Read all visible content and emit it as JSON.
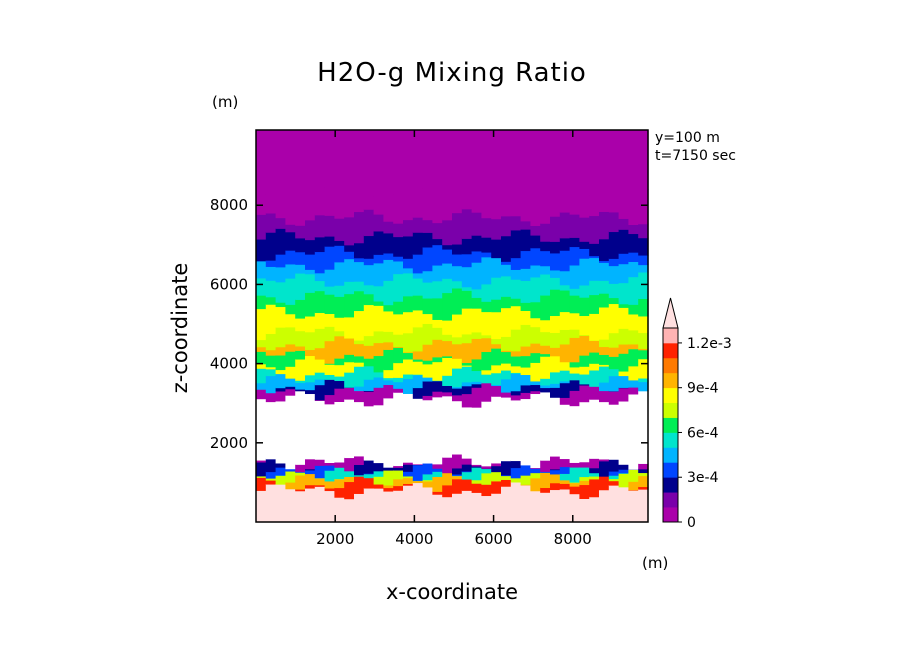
{
  "chart_data": {
    "type": "heatmap",
    "title": "H2O-g Mixing Ratio",
    "xlabel": "x-coordinate",
    "ylabel": "z-coordinate",
    "x_unit": "(m)",
    "y_unit": "(m)",
    "annotations": [
      "y=100 m",
      "t=7150 sec"
    ],
    "xlim": [
      0,
      9900
    ],
    "ylim": [
      0,
      9900
    ],
    "x_ticks": [
      2000,
      4000,
      6000,
      8000
    ],
    "y_ticks": [
      2000,
      4000,
      6000,
      8000
    ],
    "x_tick_labels": [
      "2000",
      "4000",
      "6000",
      "8000"
    ],
    "y_tick_labels": [
      "2000",
      "4000",
      "6000",
      "8000"
    ],
    "grid": false,
    "colorbar": {
      "levels": [
        0,
        0.0001,
        0.0002,
        0.0003,
        0.0004,
        0.0005,
        0.0006,
        0.0007,
        0.0008,
        0.0009,
        0.001,
        0.0011,
        0.0012
      ],
      "colors": [
        "#aa00aa",
        "#7a00aa",
        "#00008c",
        "#0046ff",
        "#00b4ff",
        "#00e5cc",
        "#00ee55",
        "#ccff00",
        "#ffff00",
        "#ffb400",
        "#ff7a00",
        "#ff2200",
        "#ffb3b3"
      ],
      "extend_color": "#ffe0e0",
      "labels": [
        {
          "value": 0.0012,
          "text": "1.2e-3"
        },
        {
          "value": 0.0009,
          "text": "9e-4"
        },
        {
          "value": 0.0006,
          "text": "6e-4"
        },
        {
          "value": 0.0003,
          "text": "3e-4"
        },
        {
          "value": 0,
          "text": "0"
        }
      ]
    },
    "z_profile": [
      {
        "z_top": 800,
        "value": 0.0013
      },
      {
        "z_top": 950,
        "value": 0.00115
      },
      {
        "z_top": 1050,
        "value": 0.00095
      },
      {
        "z_top": 1120,
        "value": 0.00075
      },
      {
        "z_top": 1200,
        "value": 0.00055
      },
      {
        "z_top": 1280,
        "value": 0.00035
      },
      {
        "z_top": 1380,
        "value": 0.00025
      },
      {
        "z_top": 1500,
        "value": 5e-05
      },
      {
        "z_top": 3100,
        "value": null
      },
      {
        "z_top": 3300,
        "value": 5e-05
      },
      {
        "z_top": 3400,
        "value": 0.00025
      },
      {
        "z_top": 3550,
        "value": 0.00045
      },
      {
        "z_top": 3750,
        "value": 0.00055
      },
      {
        "z_top": 4000,
        "value": 0.00085
      },
      {
        "z_top": 4200,
        "value": 0.00065
      },
      {
        "z_top": 4500,
        "value": 0.00095
      },
      {
        "z_top": 4800,
        "value": 0.00075
      },
      {
        "z_top": 5300,
        "value": 0.00085
      },
      {
        "z_top": 5700,
        "value": 0.00065
      },
      {
        "z_top": 6100,
        "value": 0.00055
      },
      {
        "z_top": 6500,
        "value": 0.00045
      },
      {
        "z_top": 6800,
        "value": 0.00035
      },
      {
        "z_top": 7200,
        "value": 0.00025
      },
      {
        "z_top": 7700,
        "value": 0.00015
      },
      {
        "z_top": 8300,
        "value": 5e-05
      },
      {
        "z_top": 9900,
        "value": 0
      }
    ],
    "x_cells": 40,
    "z_shift_amplitude": 220
  }
}
